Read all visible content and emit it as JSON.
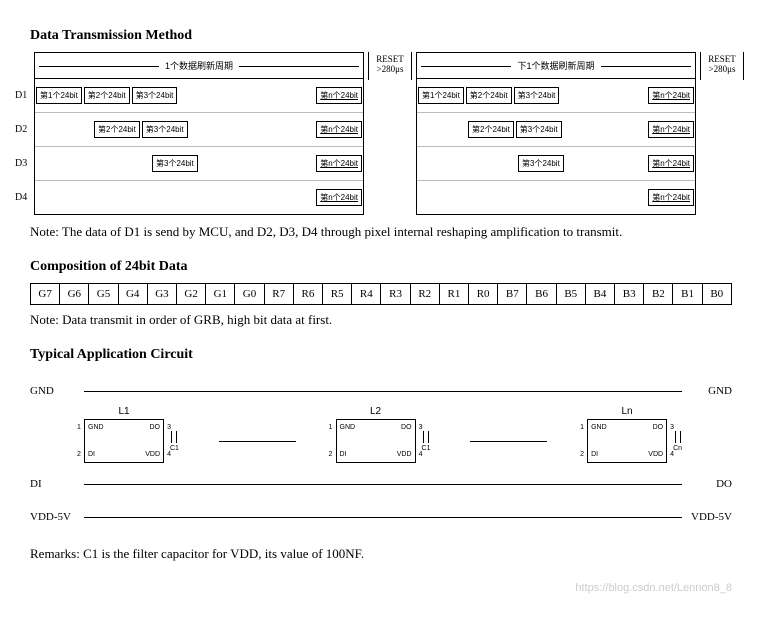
{
  "section1": {
    "title": "Data Transmission Method",
    "note": "Note: The data of D1 is send by MCU, and D2, D3, D4 through pixel internal reshaping amplification to transmit.",
    "reset_label1": "RESET",
    "reset_label2": ">280μs",
    "header_left": "1个数据刷新周期",
    "header_right": "下1个数据刷新周期",
    "rows": [
      "D1",
      "D2",
      "D3",
      "D4"
    ],
    "seg1": "第1个24bit",
    "seg2": "第2个24bit",
    "seg3": "第3个24bit",
    "segn": "第n个24bit"
  },
  "section2": {
    "title": "Composition of 24bit Data",
    "bits": [
      "G7",
      "G6",
      "G5",
      "G4",
      "G3",
      "G2",
      "G1",
      "G0",
      "R7",
      "R6",
      "R5",
      "R4",
      "R3",
      "R2",
      "R1",
      "R0",
      "B7",
      "B6",
      "B5",
      "B4",
      "B3",
      "B2",
      "B1",
      "B0"
    ],
    "note": "Note: Data transmit in order of GRB, high bit data at first."
  },
  "section3": {
    "title": "Typical Application Circuit",
    "gnd": "GND",
    "di": "DI",
    "do": "DO",
    "vdd5v": "VDD-5V",
    "chips": [
      "L1",
      "L2",
      "Ln"
    ],
    "pins": {
      "gnd": "GND",
      "do": "DO",
      "di": "DI",
      "vdd": "VDD"
    },
    "caps": [
      "C1",
      "C1",
      "Cn"
    ],
    "remark": "Remarks: C1 is the filter capacitor for VDD, its value of 100NF."
  },
  "watermark": "https://blog.csdn.net/Lennon8_8",
  "colors": {
    "text": "#000000",
    "bg": "#ffffff",
    "grid": "#bbbbbb",
    "watermark": "#cccccc"
  }
}
